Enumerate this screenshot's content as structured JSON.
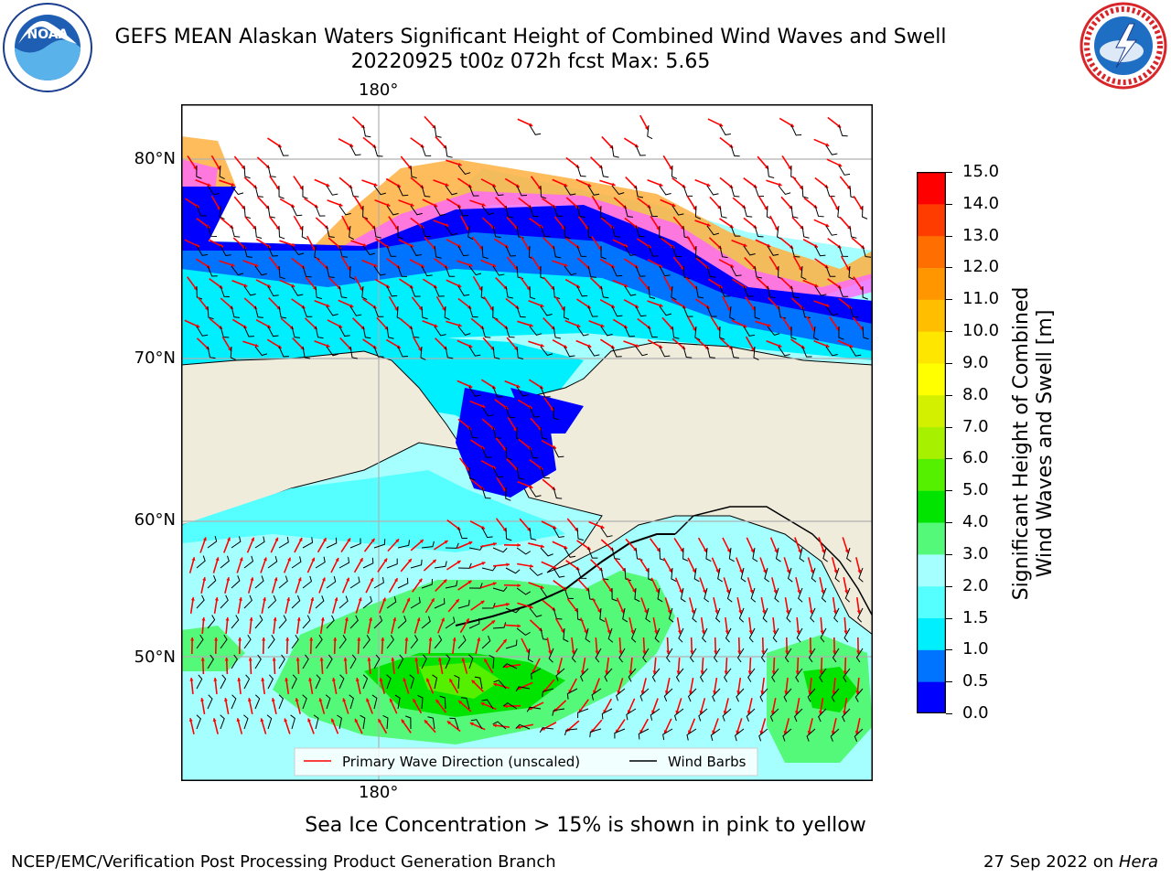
{
  "header": {
    "title_line1": "GEFS MEAN Alaskan Waters Significant Height of Combined Wind Waves and Swell",
    "title_line2": "20220925 t00z 072h fcst   Max: 5.65"
  },
  "logos": {
    "left": "noaa-logo",
    "right": "nws-logo"
  },
  "map": {
    "lat_labels": [
      "80°N",
      "70°N",
      "60°N",
      "50°N"
    ],
    "lon_label_top": "180°",
    "lon_label_bottom": "180°",
    "legend": {
      "wave_label": "Primary Wave Direction (unscaled)",
      "barb_label": "Wind Barbs",
      "wave_color": "#ff0000",
      "barb_color": "#000000"
    },
    "land_color": "#efecdc",
    "grid_color": "#b0b0b0"
  },
  "colorbar": {
    "label_line1": "Significant Height of Combined",
    "label_line2": "Wind Waves and Swell [m]",
    "ticks": [
      "15.0",
      "14.0",
      "13.0",
      "12.0",
      "11.0",
      "10.0",
      "9.0",
      "8.0",
      "7.0",
      "6.0",
      "5.0",
      "4.0",
      "3.0",
      "2.0",
      "1.5",
      "1.0",
      "0.5",
      "0.0"
    ],
    "colors_bottom_to_top": [
      "#0000ff",
      "#0074ff",
      "#00efff",
      "#55ffff",
      "#a6ffff",
      "#55f97a",
      "#00e400",
      "#55f000",
      "#a6f000",
      "#d2f000",
      "#ffff00",
      "#ffe600",
      "#ffbe00",
      "#ff9600",
      "#ff6e00",
      "#ff3c00",
      "#ff0000"
    ]
  },
  "footer": {
    "subtitle": "Sea Ice Concentration > 15% is shown in pink to yellow",
    "left": "NCEP/EMC/Verification Post Processing Product Generation Branch",
    "right_prefix": "27 Sep 2022 on ",
    "right_machine": "Hera"
  }
}
